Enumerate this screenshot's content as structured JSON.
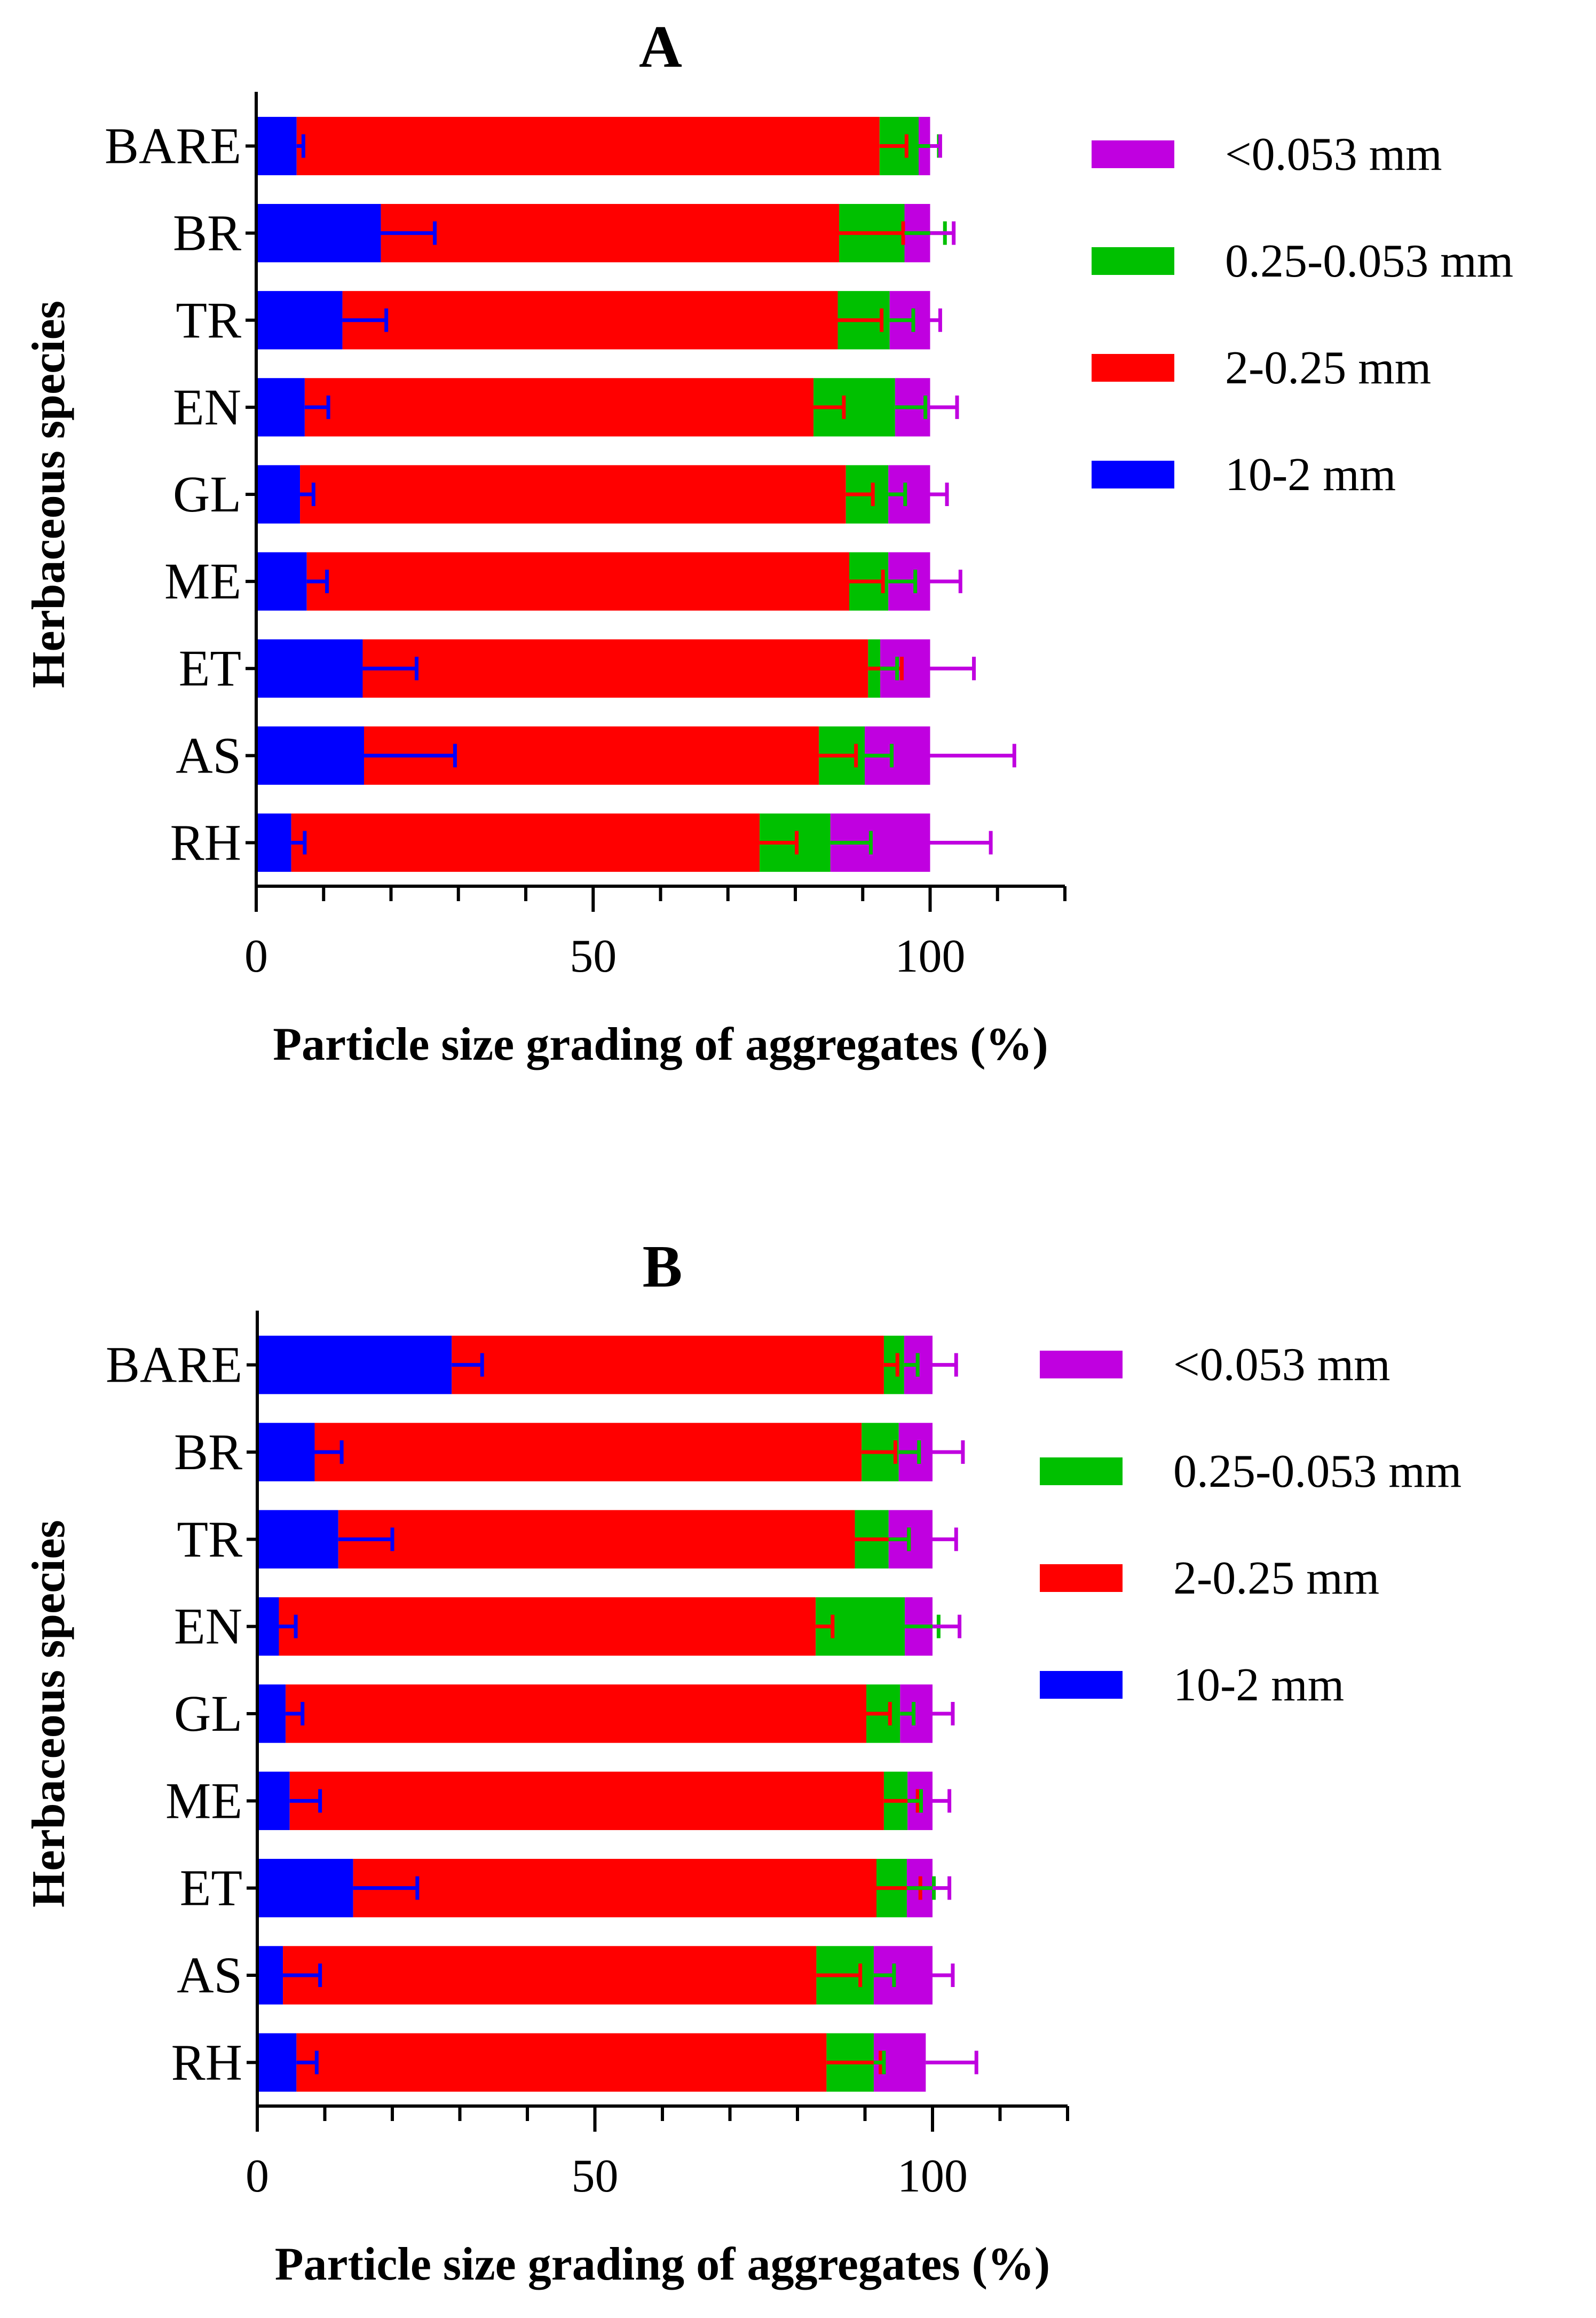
{
  "colors": {
    "10-2 mm": "#0000ff",
    "2-0.25 mm": "#ff0000",
    "0.25-0.053 mm": "#00c000",
    "<0.053 mm": "#c000e0"
  },
  "chart_data": [
    {
      "type": "bar",
      "orientation": "horizontal",
      "stacked": true,
      "title": "A",
      "xlabel": "Particle size grading of aggregates (%)",
      "ylabel": "Herbaceous species",
      "xlim": [
        0,
        120
      ],
      "xticks": [
        "0",
        "50",
        "100"
      ],
      "categories": [
        "BARE",
        "BR",
        "TR",
        "EN",
        "GL",
        "ME",
        "ET",
        "AS",
        "RH"
      ],
      "legend_position": "right",
      "legend": [
        "<0.053 mm",
        "0.25-0.053 mm",
        "2-0.25 mm",
        "10-2 mm"
      ],
      "series": [
        {
          "name": "10-2 mm",
          "values": [
            6,
            18.5,
            12.8,
            7.2,
            6.5,
            7.5,
            15.8,
            16.0,
            5.2
          ],
          "errors": [
            1,
            8,
            6.5,
            3.5,
            2,
            3,
            8,
            13.5,
            2
          ]
        },
        {
          "name": "2-0.25 mm",
          "values": [
            86.5,
            68,
            73.5,
            75.5,
            81,
            80.5,
            75,
            67.5,
            69.5
          ],
          "errors": [
            4,
            9.5,
            6.5,
            4.5,
            4,
            5,
            5,
            5.5,
            5.5
          ]
        },
        {
          "name": "0.25-0.053 mm",
          "values": [
            5.8,
            9.7,
            7.7,
            12.1,
            6.3,
            5.8,
            1.8,
            6.8,
            10.5
          ],
          "errors": [
            3,
            6,
            3.5,
            4.5,
            2.5,
            4,
            2.5,
            4,
            6
          ]
        },
        {
          "name": "<0.053 mm",
          "values": [
            1.7,
            3.8,
            6,
            5.2,
            6.2,
            6.2,
            7.4,
            9.7,
            14.8
          ],
          "errors": [
            1.5,
            3.5,
            1.5,
            4,
            2.5,
            4.5,
            6.5,
            12.5,
            9
          ]
        }
      ]
    },
    {
      "type": "bar",
      "orientation": "horizontal",
      "stacked": true,
      "title": "B",
      "xlabel": "Particle size grading of aggregates (%)",
      "ylabel": "Herbaceous species",
      "xlim": [
        0,
        120
      ],
      "xticks": [
        "0",
        "50",
        "100"
      ],
      "categories": [
        "BARE",
        "BR",
        "TR",
        "EN",
        "GL",
        "ME",
        "ET",
        "AS",
        "RH"
      ],
      "legend_position": "right",
      "legend": [
        "<0.053 mm",
        "0.25-0.053 mm",
        "2-0.25 mm",
        "10-2 mm"
      ],
      "series": [
        {
          "name": "10-2 mm",
          "values": [
            28.8,
            8.5,
            12,
            3.2,
            4.2,
            4.8,
            14.2,
            3.8,
            5.8
          ],
          "errors": [
            4.5,
            4,
            8,
            2.5,
            2.5,
            4.5,
            9.5,
            5.5,
            3
          ]
        },
        {
          "name": "2-0.25 mm",
          "values": [
            64,
            81,
            76.5,
            79.5,
            86,
            88,
            77.5,
            79,
            78.5
          ],
          "errors": [
            2,
            5,
            8,
            2.5,
            3.5,
            5,
            6.5,
            6.5,
            8
          ]
        },
        {
          "name": "0.25-0.053 mm",
          "values": [
            3,
            5.5,
            5,
            13.2,
            5,
            3.5,
            4.5,
            8.5,
            7
          ],
          "errors": [
            2,
            3,
            3,
            5,
            2,
            2,
            4,
            3,
            1.5
          ]
        },
        {
          "name": "<0.053 mm",
          "values": [
            4.2,
            5,
            6.5,
            4.1,
            4.8,
            3.7,
            3.8,
            8.7,
            7.7
          ],
          "errors": [
            3.5,
            4.5,
            3.5,
            4,
            3,
            2.5,
            2.5,
            3,
            7.5
          ]
        }
      ]
    }
  ]
}
